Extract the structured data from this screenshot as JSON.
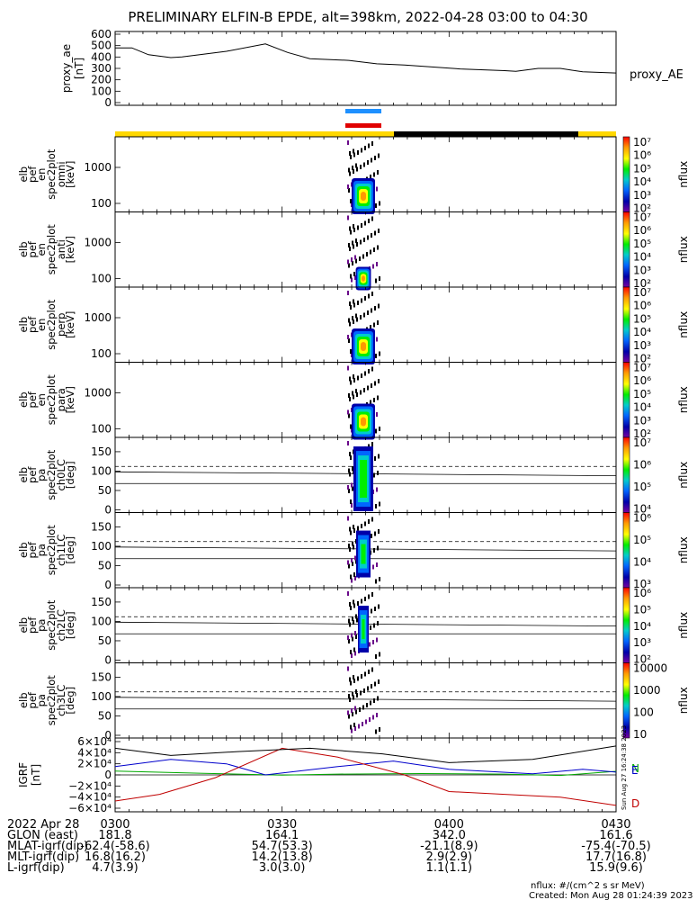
{
  "title": "PRELIMINARY ELFIN-B EPDE, alt=398km, 2022-04-28 03:00 to 04:30",
  "colors": {
    "bar_day": "#ffd800",
    "bar_night": "#000000",
    "marker_blue": "#1e90ff",
    "marker_red": "#e00000",
    "dark_red": "#c00000",
    "blue_line": "#0000cc",
    "green_line": "#00aa00"
  },
  "chart_data": [
    {
      "type": "line",
      "panel": "proxy_ae",
      "ylabel": [
        "proxy_ae",
        "[nT]"
      ],
      "yticks": [
        "600",
        "500",
        "400",
        "300",
        "200",
        "100",
        "0"
      ],
      "ylim": [
        0,
        600
      ],
      "legend": "proxy_AE",
      "series": [
        {
          "name": "proxy_AE",
          "x": [
            0,
            3,
            6,
            10,
            12,
            20,
            27,
            31,
            35,
            42,
            47,
            52,
            62,
            70,
            72,
            76,
            80,
            84,
            90
          ],
          "values": [
            480,
            480,
            420,
            395,
            400,
            450,
            515,
            440,
            385,
            370,
            340,
            330,
            295,
            280,
            275,
            300,
            300,
            270,
            260
          ]
        }
      ]
    },
    {
      "type": "heatmap",
      "panel": "omni",
      "ylabel": [
        "elb",
        "pef",
        "en",
        "spec2plot",
        "omni",
        "[keV]"
      ],
      "yticks": [
        "1000",
        "100"
      ],
      "colorbar": {
        "label": "nflux",
        "ticks": [
          "10⁷",
          "10⁶",
          "10⁵",
          "10⁴",
          "10³",
          "10²"
        ]
      }
    },
    {
      "type": "heatmap",
      "panel": "anti",
      "ylabel": [
        "elb",
        "pef",
        "en",
        "spec2plot",
        "anti",
        "[keV]"
      ],
      "yticks": [
        "1000",
        "100"
      ],
      "colorbar": {
        "label": "nflux",
        "ticks": [
          "10⁷",
          "10⁶",
          "10⁵",
          "10⁴",
          "10³",
          "10²"
        ]
      }
    },
    {
      "type": "heatmap",
      "panel": "perp",
      "ylabel": [
        "elb",
        "pef",
        "en",
        "spec2plot",
        "perp",
        "[keV]"
      ],
      "yticks": [
        "1000",
        "100"
      ],
      "colorbar": {
        "label": "nflux",
        "ticks": [
          "10⁷",
          "10⁶",
          "10⁵",
          "10⁴",
          "10³",
          "10²"
        ]
      }
    },
    {
      "type": "heatmap",
      "panel": "para",
      "ylabel": [
        "elb",
        "pef",
        "en",
        "spec2plot",
        "para",
        "[keV]"
      ],
      "yticks": [
        "1000",
        "100"
      ],
      "colorbar": {
        "label": "nflux",
        "ticks": [
          "10⁷",
          "10⁶",
          "10⁵",
          "10⁴",
          "10³",
          "10²"
        ]
      }
    },
    {
      "type": "heatmap",
      "panel": "ch0LC",
      "ylabel": [
        "elb",
        "pef",
        "pa",
        "spec2plot",
        "ch0LC",
        "[deg]"
      ],
      "yticks": [
        "150",
        "100",
        "50",
        "0"
      ],
      "colorbar": {
        "label": "nflux",
        "ticks": [
          "10⁷",
          "10⁶",
          "10⁵",
          "10⁴"
        ]
      }
    },
    {
      "type": "heatmap",
      "panel": "ch1LC",
      "ylabel": [
        "elb",
        "pef",
        "pa",
        "spec2plot",
        "ch1LC",
        "[deg]"
      ],
      "yticks": [
        "150",
        "100",
        "50",
        "0"
      ],
      "colorbar": {
        "label": "nflux",
        "ticks": [
          "10⁶",
          "10⁵",
          "10⁴",
          "10³"
        ]
      }
    },
    {
      "type": "heatmap",
      "panel": "ch2LC",
      "ylabel": [
        "elb",
        "pef",
        "pa",
        "spec2plot",
        "ch2LC",
        "[deg]"
      ],
      "yticks": [
        "150",
        "100",
        "50",
        "0"
      ],
      "colorbar": {
        "label": "nflux",
        "ticks": [
          "10⁶",
          "10⁵",
          "10⁴",
          "10³",
          "10²"
        ]
      }
    },
    {
      "type": "heatmap",
      "panel": "ch3LC",
      "ylabel": [
        "elb",
        "pef",
        "pa",
        "spec2plot",
        "ch3LC",
        "[deg]"
      ],
      "yticks": [
        "150",
        "100",
        "50",
        "0"
      ],
      "colorbar": {
        "label": "nflux",
        "ticks": [
          "10000",
          "1000",
          "100",
          "10"
        ]
      }
    },
    {
      "type": "line",
      "panel": "igrf",
      "ylabel": [
        "IGRF",
        "[nT]"
      ],
      "yticks": [
        "6×10⁴",
        "4×10⁴",
        "2×10⁴",
        "0",
        "−2×10⁴",
        "−4×10⁴",
        "−6×10⁴"
      ],
      "ylim": [
        -60000,
        60000
      ],
      "legend_labels": [
        "N",
        "E",
        "D"
      ],
      "series": [
        {
          "name": "N",
          "x": [
            0,
            15,
            30,
            40,
            55,
            70,
            80,
            90
          ],
          "values": [
            7000,
            3000,
            -500,
            1500,
            2500,
            1500,
            -1000,
            6500
          ]
        },
        {
          "name": "E",
          "x": [
            0,
            10,
            20,
            27,
            40,
            50,
            60,
            75,
            84,
            90
          ],
          "values": [
            15000,
            28000,
            20000,
            0,
            15000,
            25000,
            10000,
            2000,
            10000,
            5000
          ]
        },
        {
          "name": "D",
          "x": [
            0,
            8,
            18,
            30,
            40,
            52,
            60,
            70,
            80,
            90
          ],
          "values": [
            -47000,
            -35000,
            -5000,
            48000,
            32000,
            0,
            -30000,
            -35000,
            -40000,
            -55000
          ]
        },
        {
          "name": "total",
          "x": [
            0,
            10,
            22,
            35,
            48,
            60,
            75,
            90
          ],
          "values": [
            48000,
            35000,
            42000,
            48000,
            38000,
            22000,
            28000,
            52000
          ]
        }
      ]
    }
  ],
  "xaxis": {
    "ticks": [
      "0300",
      "0330",
      "0400",
      "0430"
    ],
    "date": "2022 Apr 28",
    "rows": [
      {
        "label": "GLON (east)",
        "values": [
          "181.8",
          "164.1",
          "342.0",
          "161.6"
        ]
      },
      {
        "label": "MLAT-igrf(dip)",
        "values": [
          "-62.4(-58.6)",
          "54.7(53.3)",
          "-21.1(8.9)",
          "-75.4(-70.5)"
        ]
      },
      {
        "label": "MLT-igrf(dip)",
        "values": [
          "16.8(16.2)",
          "14.2(13.8)",
          "2.9(2.9)",
          "17.7(16.8)"
        ]
      },
      {
        "label": "L-igrf(dip)",
        "values": [
          "4.7(3.9)",
          "3.0(3.0)",
          "1.1(1.1)",
          "15.9(9.6)"
        ]
      }
    ]
  },
  "footer": {
    "units": "nflux: #/(cm^2 s sr MeV)",
    "created": "Created: Mon Aug 28 01:24:39 2023"
  },
  "side_stamp": "Sun Aug 27 16:24:38 2023"
}
